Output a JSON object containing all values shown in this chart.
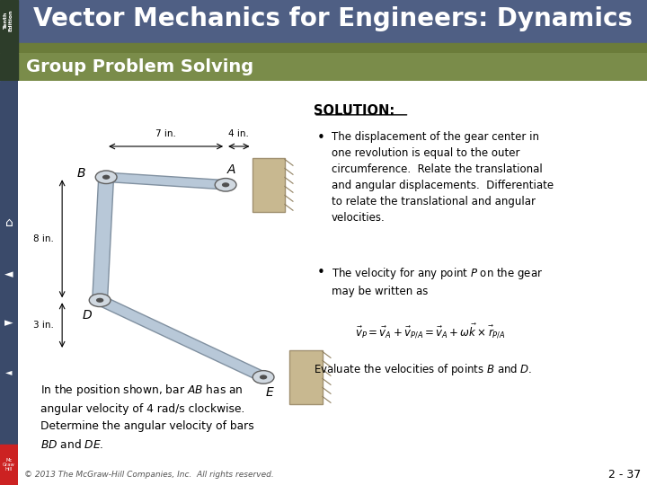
{
  "header_title": "Vector Mechanics for Engineers: Dynamics",
  "header_bg_top": "#4f5f84",
  "header_green_color": "#6b7c3a",
  "sidebar_dark": "#2d3d2a",
  "subheader_bg": "#7a8c4a",
  "body_bg": "#ffffff",
  "solution_title": "SOLUTION:",
  "bullet1": "The displacement of the gear center in\none revolution is equal to the outer\ncircumference.  Relate the translational\nand angular displacements.  Differentiate\nto relate the translational and angular\nvelocities.",
  "bullet2_line1": "The velocity for any point ",
  "bullet2_line2": "P on the gear",
  "bullet2_line3": "may be written as",
  "evaluate_text": "Evaluate the velocities of points B and D.",
  "bottom_text_1": "In the position shown, bar AB has an",
  "bottom_text_2": "angular velocity of 4 rad/s clockwise.",
  "bottom_text_3": "Determine the angular velocity of bars",
  "bottom_text_4": "BD and DE.",
  "copyright": "© 2013 The McGraw-Hill Companies, Inc.  All rights reserved.",
  "page_num": "2 - 37",
  "nav_bg": "#3a4a6a",
  "link_color": "#b8c8d8",
  "link_edge": "#8090a0",
  "joint_edge": "#606060",
  "wall_color": "#c8b890"
}
